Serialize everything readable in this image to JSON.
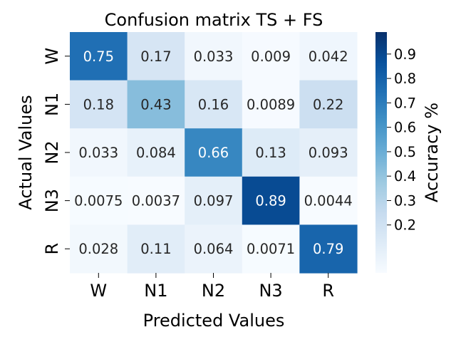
{
  "chart_data": {
    "type": "heatmap",
    "title": "Confusion matrix TS + FS",
    "xlabel": "Predicted Values",
    "ylabel": "Actual Values",
    "x_categories": [
      "W",
      "N1",
      "N2",
      "N3",
      "R"
    ],
    "y_categories": [
      "W",
      "N1",
      "N2",
      "N3",
      "R"
    ],
    "values": [
      [
        0.75,
        0.17,
        0.033,
        0.009,
        0.042
      ],
      [
        0.18,
        0.43,
        0.16,
        0.0089,
        0.22
      ],
      [
        0.033,
        0.084,
        0.66,
        0.13,
        0.093
      ],
      [
        0.0075,
        0.0037,
        0.097,
        0.89,
        0.0044
      ],
      [
        0.028,
        0.11,
        0.064,
        0.0071,
        0.79
      ]
    ],
    "value_labels": [
      [
        "0.75",
        "0.17",
        "0.033",
        "0.009",
        "0.042"
      ],
      [
        "0.18",
        "0.43",
        "0.16",
        "0.0089",
        "0.22"
      ],
      [
        "0.033",
        "0.084",
        "0.66",
        "0.13",
        "0.093"
      ],
      [
        "0.0075",
        "0.0037",
        "0.097",
        "0.89",
        "0.0044"
      ],
      [
        "0.028",
        "0.11",
        "0.064",
        "0.0071",
        "0.79"
      ]
    ],
    "colormap": "Blues",
    "vmin": 0.0037,
    "vmax": 0.99,
    "colorbar": {
      "label": "Accuracy %",
      "ticks": [
        0.2,
        0.3,
        0.4,
        0.5,
        0.6,
        0.7,
        0.8,
        0.9
      ],
      "tick_labels": [
        "0.2",
        "0.3",
        "0.4",
        "0.5",
        "0.6",
        "0.7",
        "0.8",
        "0.9"
      ]
    }
  }
}
